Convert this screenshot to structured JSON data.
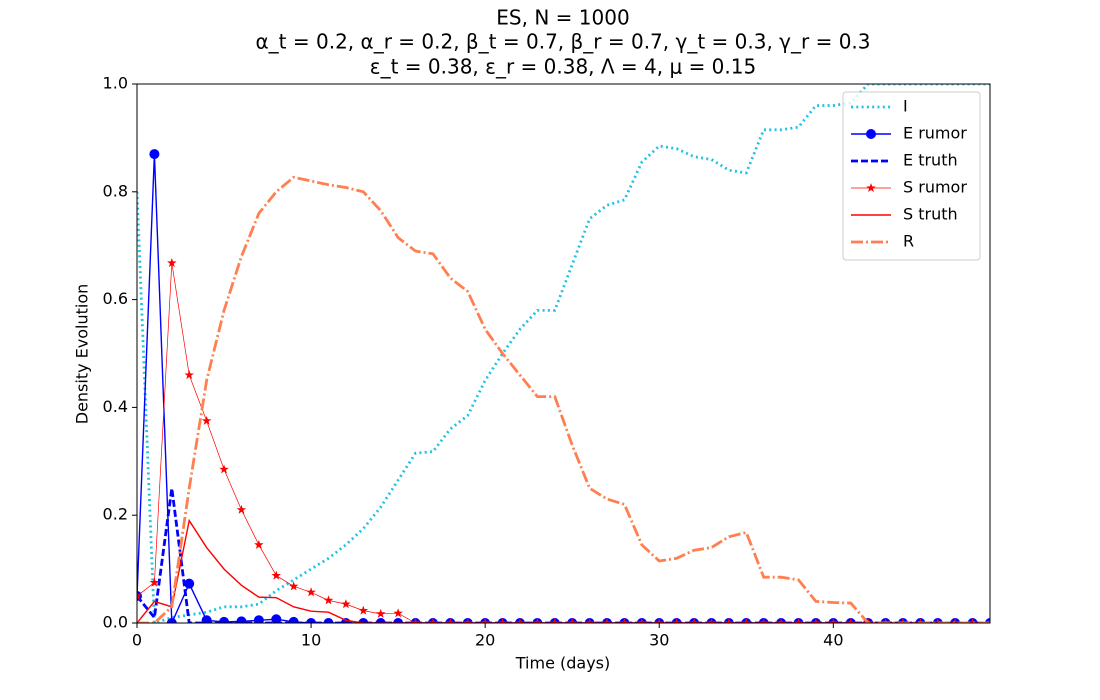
{
  "chart_data": {
    "type": "line",
    "title_lines": [
      "ES, N = 1000",
      "α_t = 0.2, α_r = 0.2, β_t = 0.7, β_r = 0.7, γ_t = 0.3, γ_r = 0.3",
      "ε_t = 0.38, ε_r = 0.38, Λ = 4, μ = 0.15"
    ],
    "x_label": "Time (days)",
    "y_label": "Density Evolution",
    "xlim": [
      0,
      49
    ],
    "ylim": [
      0,
      1
    ],
    "xticks": [
      0,
      10,
      20,
      30,
      40
    ],
    "yticks": [
      {
        "value": 0,
        "label": "0.0"
      },
      0.2,
      0.4,
      0.6,
      0.8,
      {
        "value": 1,
        "label": "1.0"
      }
    ],
    "legend": "upper right",
    "x": [
      0,
      1,
      2,
      3,
      4,
      5,
      6,
      7,
      8,
      9,
      10,
      11,
      12,
      13,
      14,
      15,
      16,
      17,
      18,
      19,
      20,
      21,
      22,
      23,
      24,
      25,
      26,
      27,
      28,
      29,
      30,
      31,
      32,
      33,
      34,
      35,
      36,
      37,
      38,
      39,
      40,
      41,
      42,
      43,
      44,
      45,
      46,
      47,
      48,
      49
    ],
    "series": [
      {
        "name": "I",
        "color": "#1fc3e3",
        "linestyle": "dotted",
        "marker": "none",
        "width": 2,
        "values": [
          0.8,
          0,
          0.01,
          0.015,
          0.02,
          0.03,
          0.03,
          0.035,
          0.06,
          0.08,
          0.1,
          0.12,
          0.145,
          0.175,
          0.215,
          0.265,
          0.315,
          0.318,
          0.36,
          0.385,
          0.45,
          0.5,
          0.545,
          0.58,
          0.58,
          0.665,
          0.75,
          0.775,
          0.785,
          0.855,
          0.885,
          0.88,
          0.865,
          0.86,
          0.84,
          0.835,
          0.915,
          0.915,
          0.92,
          0.96,
          0.96,
          0.965,
          1,
          1,
          1,
          1,
          1,
          1,
          1,
          1
        ]
      },
      {
        "name": "E rumor",
        "color": "#0000ff",
        "linestyle": "solid",
        "marker": "circle",
        "width": 1,
        "values": [
          0.05,
          0.87,
          0,
          0.073,
          0.005,
          0.002,
          0.003,
          0.005,
          0.007,
          0.002,
          0,
          0,
          0,
          0,
          0,
          0,
          0,
          0,
          0,
          0,
          0,
          0,
          0,
          0,
          0,
          0,
          0,
          0,
          0,
          0,
          0,
          0,
          0,
          0,
          0,
          0,
          0,
          0,
          0,
          0,
          0,
          0,
          0,
          0,
          0,
          0,
          0,
          0,
          0,
          0
        ]
      },
      {
        "name": "E truth",
        "color": "#0000ff",
        "linestyle": "dashed",
        "marker": "none",
        "width": 2,
        "values": [
          0.05,
          0.01,
          0.25,
          0,
          0,
          0,
          0,
          0,
          0,
          0,
          0,
          0,
          0,
          0,
          0,
          0,
          0,
          0,
          0,
          0,
          0,
          0,
          0,
          0,
          0,
          0,
          0,
          0,
          0,
          0,
          0,
          0,
          0,
          0,
          0,
          0,
          0,
          0,
          0,
          0,
          0,
          0,
          0,
          0,
          0,
          0,
          0,
          0,
          0,
          0
        ]
      },
      {
        "name": "S rumor",
        "color": "#ff0000",
        "linestyle": "solid",
        "marker": "star",
        "width": 0.5,
        "values": [
          0.05,
          0.075,
          0.668,
          0.46,
          0.375,
          0.285,
          0.21,
          0.145,
          0.088,
          0.068,
          0.057,
          0.042,
          0.035,
          0.023,
          0.017,
          0.018,
          0,
          0,
          0,
          0,
          0,
          0,
          0,
          0,
          0,
          0,
          0,
          0,
          0,
          0,
          0,
          0,
          0,
          0,
          0,
          0,
          0,
          0,
          0,
          0,
          0,
          0,
          0,
          0,
          0,
          0,
          0,
          0,
          0,
          0
        ]
      },
      {
        "name": "S truth",
        "color": "#ff0000",
        "linestyle": "solid",
        "marker": "none",
        "width": 1,
        "values": [
          0,
          0.04,
          0.03,
          0.19,
          0.14,
          0.1,
          0.07,
          0.048,
          0.047,
          0.03,
          0.022,
          0.02,
          0.005,
          0,
          0,
          0,
          0,
          0,
          0,
          0,
          0,
          0,
          0,
          0,
          0,
          0,
          0,
          0,
          0,
          0,
          0,
          0,
          0,
          0,
          0,
          0,
          0,
          0,
          0,
          0,
          0,
          0,
          0,
          0,
          0,
          0,
          0,
          0,
          0,
          0
        ]
      },
      {
        "name": "R",
        "color": "#ff7f50",
        "linestyle": "dashdot",
        "marker": "none",
        "width": 2,
        "values": [
          0,
          0,
          0.03,
          0.25,
          0.45,
          0.58,
          0.68,
          0.76,
          0.8,
          0.827,
          0.82,
          0.813,
          0.808,
          0.8,
          0.765,
          0.715,
          0.69,
          0.685,
          0.64,
          0.615,
          0.545,
          0.5,
          0.46,
          0.42,
          0.42,
          0.33,
          0.25,
          0.23,
          0.22,
          0.145,
          0.115,
          0.12,
          0.135,
          0.14,
          0.16,
          0.168,
          0.085,
          0.085,
          0.08,
          0.04,
          0.038,
          0.037,
          0,
          0,
          0,
          0,
          0,
          0,
          0,
          0
        ]
      }
    ]
  }
}
